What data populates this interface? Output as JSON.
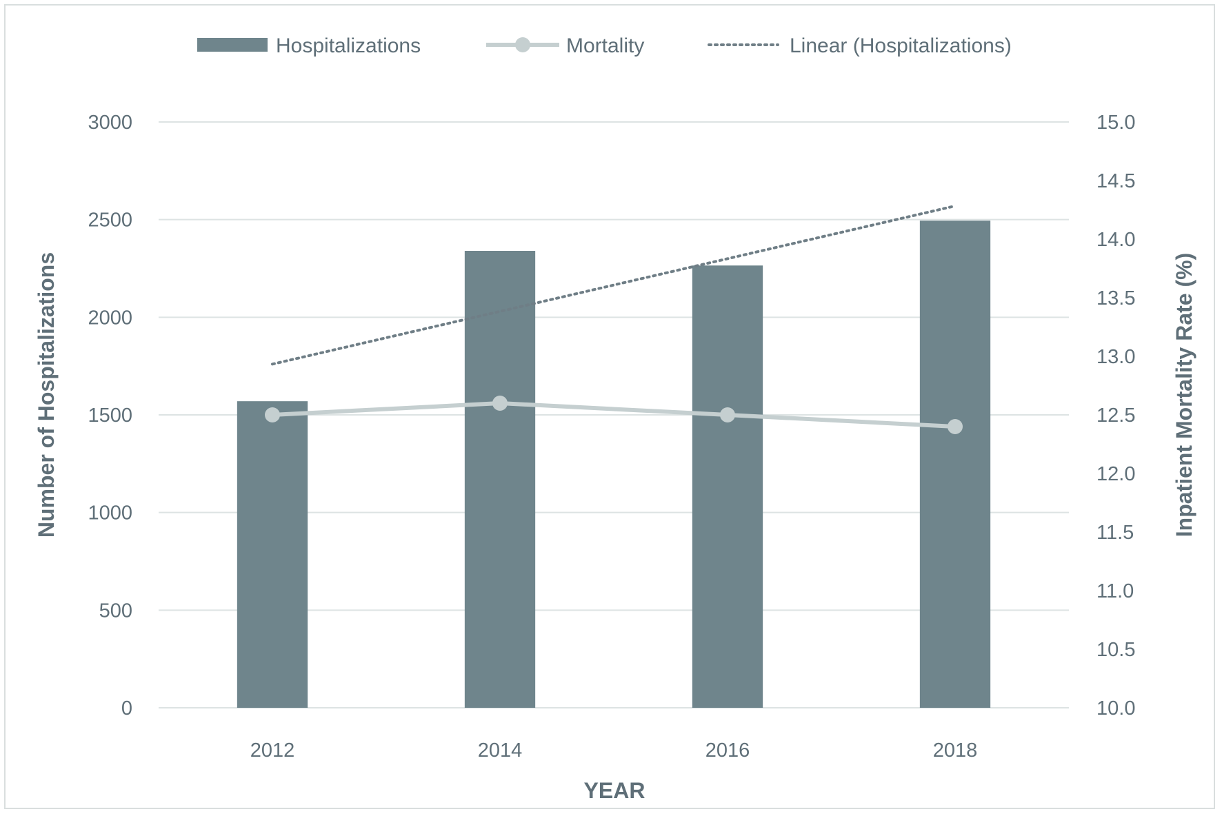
{
  "chart_data": {
    "type": "bar",
    "categories": [
      "2012",
      "2014",
      "2016",
      "2018"
    ],
    "series": [
      {
        "name": "Hospitalizations",
        "type": "bar",
        "axis": "left",
        "values": [
          1570,
          2340,
          2265,
          2495
        ],
        "color": "#6f858c"
      },
      {
        "name": "Mortality",
        "type": "line",
        "axis": "right",
        "values": [
          12.5,
          12.6,
          12.5,
          12.4
        ],
        "color": "#c5cfd0"
      },
      {
        "name": "Linear (Hospitalizations)",
        "type": "trendline",
        "axis": "left",
        "values": [
          1760,
          2030,
          2300,
          2570
        ],
        "color": "#6f7e86"
      }
    ],
    "xlabel": "YEAR",
    "ylabel": "Number of Hospitalizations",
    "y2label": "Inpatient Mortality Rate (%)",
    "ylim": [
      0,
      3000
    ],
    "y2lim": [
      10.0,
      15.0
    ],
    "yticks": [
      "0",
      "500",
      "1000",
      "1500",
      "2000",
      "2500",
      "3000"
    ],
    "y2ticks": [
      "10.0",
      "10.5",
      "11.0",
      "11.5",
      "12.0",
      "12.5",
      "13.0",
      "13.5",
      "14.0",
      "14.5",
      "15.0"
    ],
    "grid": true,
    "legend_position": "top"
  }
}
